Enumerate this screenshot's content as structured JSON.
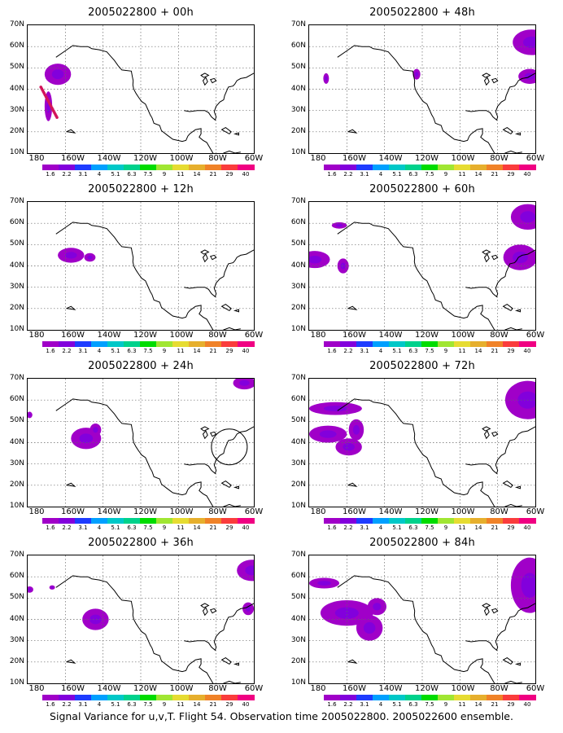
{
  "panels": [
    {
      "title": "2005022800 + 00h"
    },
    {
      "title": "2005022800 + 48h"
    },
    {
      "title": "2005022800 + 12h"
    },
    {
      "title": "2005022800 + 60h"
    },
    {
      "title": "2005022800 + 24h"
    },
    {
      "title": "2005022800 + 72h"
    },
    {
      "title": "2005022800 + 36h"
    },
    {
      "title": "2005022800 + 84h"
    }
  ],
  "axes": {
    "lat_ticks": [
      "70N",
      "60N",
      "50N",
      "40N",
      "30N",
      "20N",
      "10N"
    ],
    "lon_ticks": [
      "180",
      "160W",
      "140W",
      "120W",
      "100W",
      "80W",
      "60W"
    ]
  },
  "colorbar": {
    "labels": [
      "1.6",
      "2.2",
      "3.1",
      "4",
      "5.1",
      "6.3",
      "7.5",
      "9",
      "11",
      "14",
      "21",
      "29",
      "40"
    ],
    "colors": [
      "#a000c8",
      "#8200dc",
      "#1e3cff",
      "#00a0ff",
      "#00c8c8",
      "#00d28c",
      "#00dc00",
      "#a0e632",
      "#e6dc32",
      "#e6af2d",
      "#f08228",
      "#fa3c3c",
      "#f00082"
    ]
  },
  "caption": "Signal Variance for u,v,T. Flight 54. Observation time 2005022800. 2005022600 ensemble."
}
